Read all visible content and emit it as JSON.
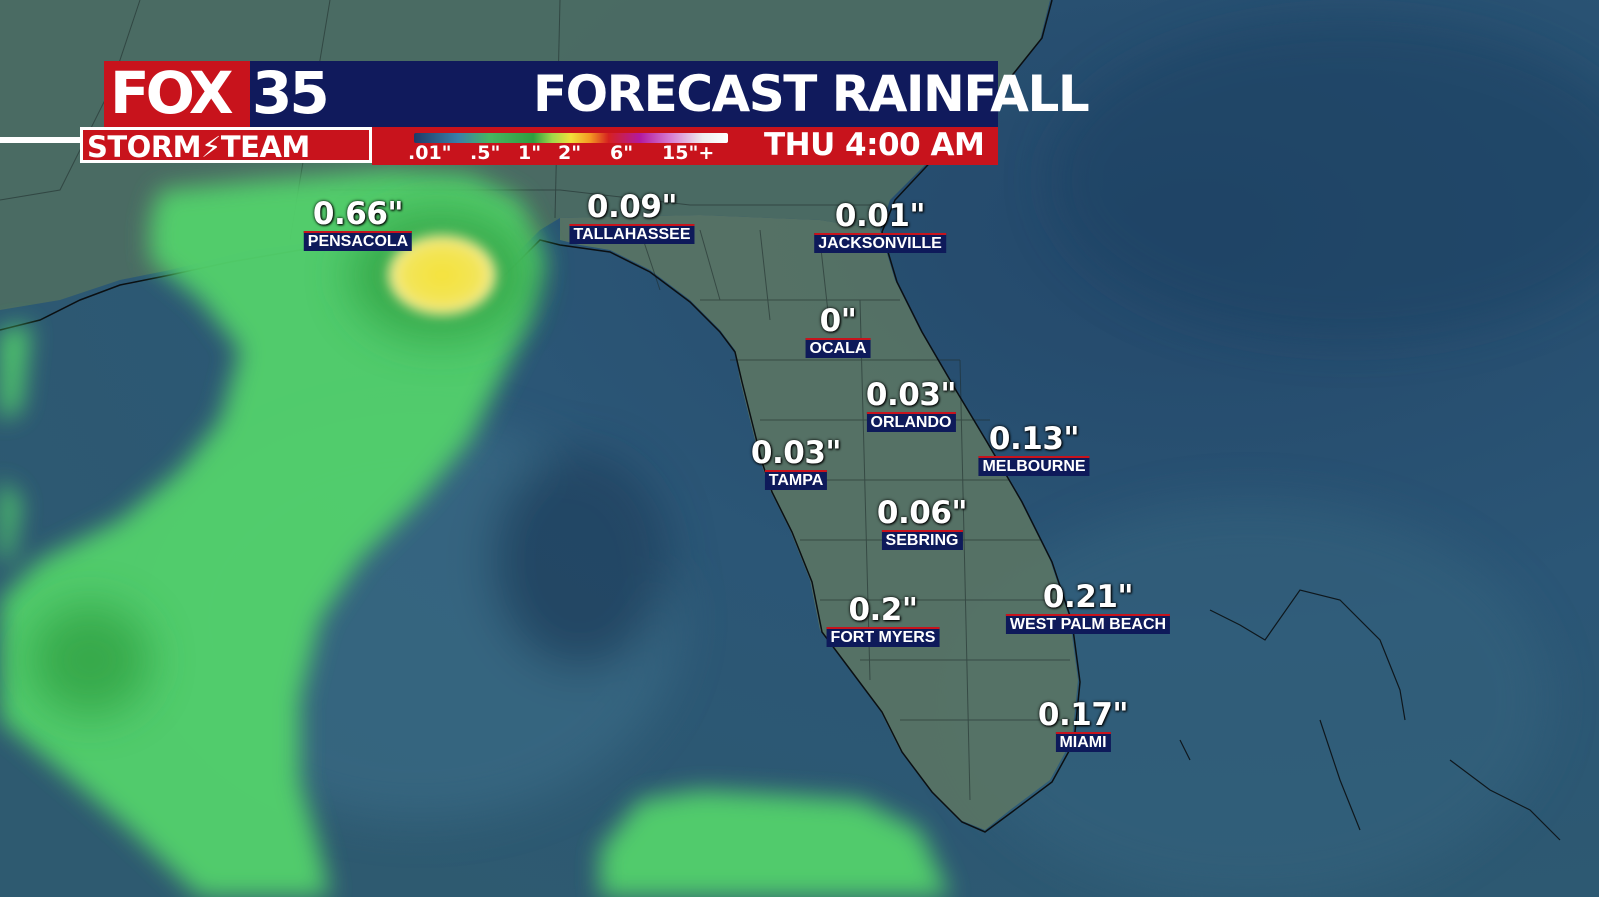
{
  "header": {
    "logo_fox": "FOX",
    "logo_number": "35",
    "logo_team": "STORM⚡TEAM",
    "title": "FORECAST RAINFALL",
    "valid_time": "THU 4:00 AM",
    "scale_labels": [
      ".01\"",
      ".5\"",
      "1\"",
      "2\"",
      "6\"",
      "15\"+"
    ]
  },
  "cities": [
    {
      "name": "PENSACOLA",
      "amount": "0.66\""
    },
    {
      "name": "TALLAHASSEE",
      "amount": "0.09\""
    },
    {
      "name": "JACKSONVILLE",
      "amount": "0.01\""
    },
    {
      "name": "OCALA",
      "amount": "0\""
    },
    {
      "name": "ORLANDO",
      "amount": "0.03\""
    },
    {
      "name": "MELBOURNE",
      "amount": "0.13\""
    },
    {
      "name": "TAMPA",
      "amount": "0.03\""
    },
    {
      "name": "SEBRING",
      "amount": "0.06\""
    },
    {
      "name": "FORT MYERS",
      "amount": "0.2\""
    },
    {
      "name": "WEST PALM BEACH",
      "amount": "0.21\""
    },
    {
      "name": "MIAMI",
      "amount": "0.17\""
    }
  ],
  "colors": {
    "fox_red": "#c8131c",
    "fox_navy": "#101a5c",
    "ocean": "#2a4f6e",
    "rain_light": "#4fd36b",
    "rain_heavy": "#f2df3a"
  }
}
